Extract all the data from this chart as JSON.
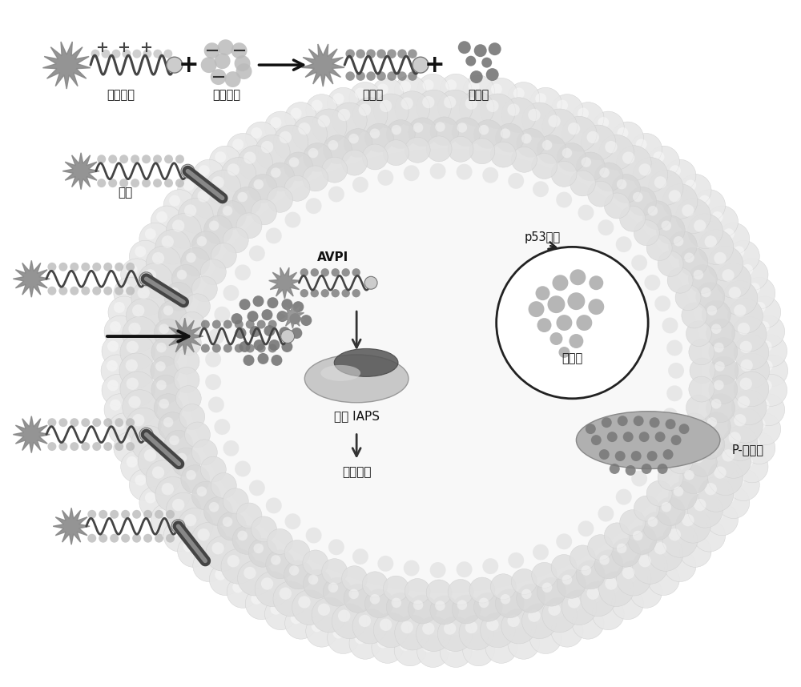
{
  "bg_color": "#ffffff",
  "labels": {
    "bifunctional_peptide": "双功能肽",
    "therapeutic_gene": "治疗基因",
    "complex": "复合物",
    "adriamycin": "阿霉素",
    "receptor": "受体",
    "avpi": "AVPI",
    "target_iaps": "靶向 IAPS",
    "induce_death": "诱导凋亡",
    "p53_release": "p53释放",
    "nucleus": "细胞核",
    "p_pump": "P-蛋白泵"
  },
  "star_color": "#888888",
  "wave_color": "#444444",
  "dot_color_light": "#bbbbbb",
  "dot_color_dark": "#777777",
  "receptor_stick_outer": "#555555",
  "receptor_stick_inner": "#888888",
  "membrane_sphere_fill": "#e0e0e0",
  "membrane_sphere_edge": "#bbbbbb",
  "membrane_inner_fill": "#d8d8d8",
  "cell_interior": "#f0f0f0",
  "nucleus_fill": "#ffffff",
  "nucleus_edge": "#333333",
  "nucleus_dot": "#aaaaaa",
  "iaps_fill": "#aaaaaa",
  "iaps_top": "#555555",
  "pump_fill": "#aaaaaa",
  "pump_dot": "#777777",
  "arrow_color": "#111111",
  "text_color": "#111111",
  "avpi_starburst": "#888888"
}
